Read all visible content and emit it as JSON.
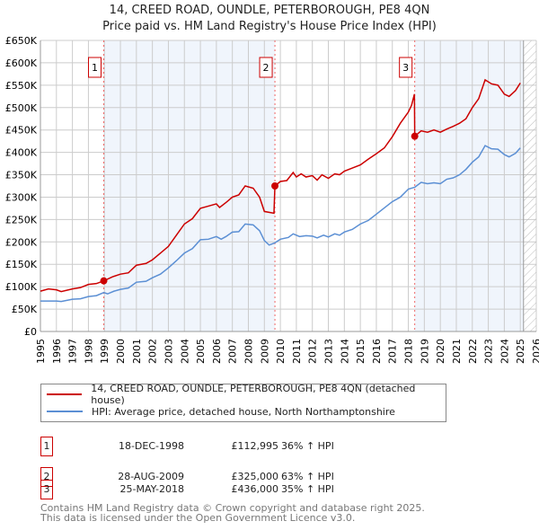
{
  "chart_data": {
    "type": "line",
    "title": "14, CREED ROAD, OUNDLE, PETERBOROUGH, PE8 4QN",
    "subtitle": "Price paid vs. HM Land Registry's House Price Index (HPI)",
    "xlim": [
      1995,
      2026
    ],
    "ylim": [
      0,
      650000
    ],
    "y_ticks": [
      "£0",
      "£50K",
      "£100K",
      "£150K",
      "£200K",
      "£250K",
      "£300K",
      "£350K",
      "£400K",
      "£450K",
      "£500K",
      "£550K",
      "£600K",
      "£650K"
    ],
    "x_ticks": [
      "1995",
      "1996",
      "1997",
      "1998",
      "1999",
      "2000",
      "2001",
      "2002",
      "2003",
      "2004",
      "2005",
      "2006",
      "2007",
      "2008",
      "2009",
      "2010",
      "2011",
      "2012",
      "2013",
      "2014",
      "2015",
      "2016",
      "2017",
      "2018",
      "2019",
      "2020",
      "2021",
      "2022",
      "2023",
      "2024",
      "2025",
      "2026"
    ],
    "grid": true,
    "forecast_start": 2025.2,
    "series": [
      {
        "name": "14, CREED ROAD, OUNDLE, PETERBOROUGH, PE8 4QN (detached house)",
        "color": "#cc0000",
        "points": [
          [
            1995,
            90000
          ],
          [
            1995.5,
            95000
          ],
          [
            1996,
            93000
          ],
          [
            1996.3,
            89000
          ],
          [
            1997,
            95000
          ],
          [
            1997.5,
            98000
          ],
          [
            1998,
            105000
          ],
          [
            1998.5,
            107000
          ],
          [
            1998.96,
            112995
          ],
          [
            1999.5,
            122000
          ],
          [
            2000,
            128000
          ],
          [
            2000.5,
            131000
          ],
          [
            2001,
            148000
          ],
          [
            2001.6,
            152000
          ],
          [
            2002,
            160000
          ],
          [
            2002.5,
            175000
          ],
          [
            2003,
            190000
          ],
          [
            2003.5,
            215000
          ],
          [
            2004,
            240000
          ],
          [
            2004.5,
            252000
          ],
          [
            2005,
            275000
          ],
          [
            2005.5,
            280000
          ],
          [
            2006,
            285000
          ],
          [
            2006.2,
            277000
          ],
          [
            2006.6,
            288000
          ],
          [
            2007,
            300000
          ],
          [
            2007.4,
            305000
          ],
          [
            2007.8,
            325000
          ],
          [
            2008.3,
            320000
          ],
          [
            2008.7,
            300000
          ],
          [
            2009,
            268000
          ],
          [
            2009.6,
            264000
          ],
          [
            2009.66,
            325000
          ],
          [
            2010,
            335000
          ],
          [
            2010.4,
            337000
          ],
          [
            2010.8,
            355000
          ],
          [
            2011,
            345000
          ],
          [
            2011.3,
            352000
          ],
          [
            2011.6,
            345000
          ],
          [
            2012,
            348000
          ],
          [
            2012.3,
            338000
          ],
          [
            2012.6,
            350000
          ],
          [
            2013,
            342000
          ],
          [
            2013.4,
            352000
          ],
          [
            2013.7,
            350000
          ],
          [
            2014,
            358000
          ],
          [
            2014.5,
            365000
          ],
          [
            2015,
            372000
          ],
          [
            2015.5,
            385000
          ],
          [
            2016,
            397000
          ],
          [
            2016.5,
            410000
          ],
          [
            2017,
            435000
          ],
          [
            2017.5,
            465000
          ],
          [
            2018,
            490000
          ],
          [
            2018.2,
            505000
          ],
          [
            2018.38,
            530000
          ],
          [
            2018.4,
            436000
          ],
          [
            2018.8,
            448000
          ],
          [
            2019.2,
            445000
          ],
          [
            2019.6,
            450000
          ],
          [
            2020,
            445000
          ],
          [
            2020.4,
            452000
          ],
          [
            2020.8,
            458000
          ],
          [
            2021.2,
            465000
          ],
          [
            2021.6,
            475000
          ],
          [
            2022,
            500000
          ],
          [
            2022.4,
            520000
          ],
          [
            2022.8,
            562000
          ],
          [
            2023.2,
            553000
          ],
          [
            2023.6,
            550000
          ],
          [
            2024,
            530000
          ],
          [
            2024.3,
            525000
          ],
          [
            2024.7,
            538000
          ],
          [
            2025,
            555000
          ]
        ]
      },
      {
        "name": "HPI: Average price, detached house, North Northamptonshire",
        "color": "#5b8fd4",
        "points": [
          [
            1995,
            68000
          ],
          [
            1996,
            68000
          ],
          [
            1996.3,
            67000
          ],
          [
            1997,
            72000
          ],
          [
            1997.5,
            73000
          ],
          [
            1998,
            78000
          ],
          [
            1998.5,
            80000
          ],
          [
            1998.96,
            87000
          ],
          [
            1999.2,
            84000
          ],
          [
            1999.6,
            90000
          ],
          [
            2000,
            94000
          ],
          [
            2000.5,
            97000
          ],
          [
            2001,
            110000
          ],
          [
            2001.6,
            112000
          ],
          [
            2002,
            120000
          ],
          [
            2002.5,
            128000
          ],
          [
            2003,
            142000
          ],
          [
            2003.5,
            158000
          ],
          [
            2004,
            175000
          ],
          [
            2004.5,
            185000
          ],
          [
            2005,
            205000
          ],
          [
            2005.5,
            206000
          ],
          [
            2006,
            212000
          ],
          [
            2006.3,
            206000
          ],
          [
            2006.6,
            212000
          ],
          [
            2007,
            222000
          ],
          [
            2007.4,
            223000
          ],
          [
            2007.8,
            240000
          ],
          [
            2008.3,
            238000
          ],
          [
            2008.7,
            225000
          ],
          [
            2009,
            203000
          ],
          [
            2009.3,
            193000
          ],
          [
            2009.66,
            198000
          ],
          [
            2010,
            206000
          ],
          [
            2010.5,
            210000
          ],
          [
            2010.8,
            218000
          ],
          [
            2011.2,
            212000
          ],
          [
            2011.6,
            214000
          ],
          [
            2012,
            213000
          ],
          [
            2012.3,
            209000
          ],
          [
            2012.7,
            215000
          ],
          [
            2013,
            211000
          ],
          [
            2013.4,
            218000
          ],
          [
            2013.7,
            215000
          ],
          [
            2014,
            222000
          ],
          [
            2014.5,
            228000
          ],
          [
            2015,
            240000
          ],
          [
            2015.5,
            248000
          ],
          [
            2016,
            262000
          ],
          [
            2016.5,
            276000
          ],
          [
            2017,
            290000
          ],
          [
            2017.5,
            300000
          ],
          [
            2018,
            318000
          ],
          [
            2018.4,
            322000
          ],
          [
            2018.8,
            333000
          ],
          [
            2019.2,
            330000
          ],
          [
            2019.6,
            332000
          ],
          [
            2020,
            330000
          ],
          [
            2020.4,
            340000
          ],
          [
            2020.8,
            343000
          ],
          [
            2021.2,
            350000
          ],
          [
            2021.6,
            362000
          ],
          [
            2022,
            378000
          ],
          [
            2022.4,
            390000
          ],
          [
            2022.8,
            415000
          ],
          [
            2023.2,
            408000
          ],
          [
            2023.6,
            407000
          ],
          [
            2024,
            395000
          ],
          [
            2024.3,
            390000
          ],
          [
            2024.7,
            398000
          ],
          [
            2025,
            410000
          ]
        ]
      }
    ],
    "sales": [
      {
        "num": "1",
        "date": "18-DEC-1998",
        "price": "£112,995",
        "hpi": "36% ↑ HPI",
        "x": 1998.96,
        "y": 112995
      },
      {
        "num": "2",
        "date": "28-AUG-2009",
        "price": "£325,000",
        "hpi": "63% ↑ HPI",
        "x": 2009.66,
        "y": 325000
      },
      {
        "num": "3",
        "date": "25-MAY-2018",
        "price": "£436,000",
        "hpi": "35% ↑ HPI",
        "x": 2018.4,
        "y": 436000
      }
    ]
  },
  "footer": {
    "line1": "Contains HM Land Registry data © Crown copyright and database right 2025.",
    "line2": "This data is licensed under the Open Government Licence v3.0."
  }
}
